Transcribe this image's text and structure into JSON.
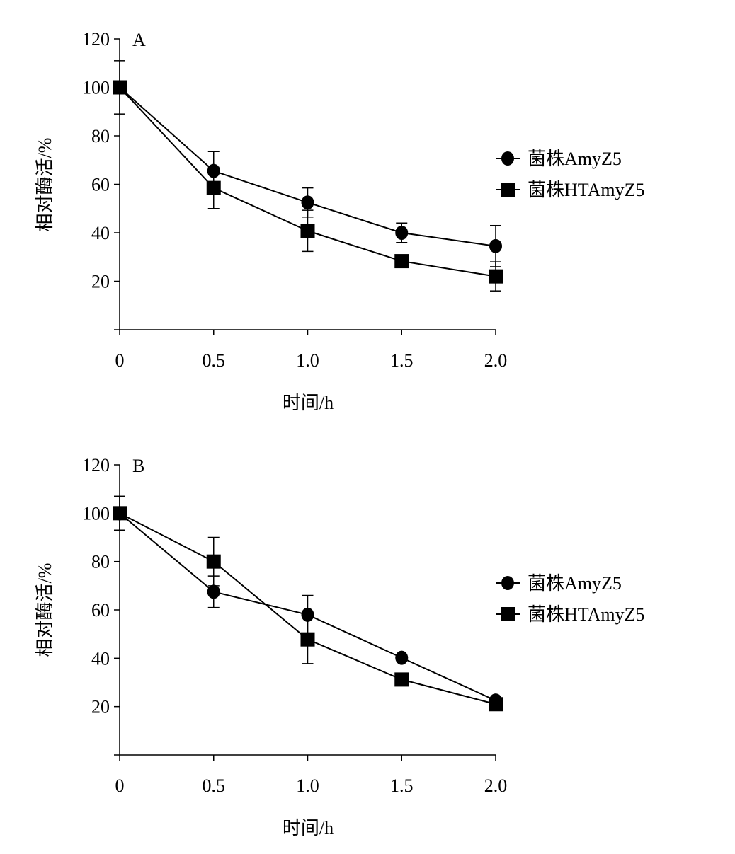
{
  "chart_data": [
    {
      "type": "line",
      "panel_label": "A",
      "xlabel": "时间/h",
      "ylabel": "相对酶活/%",
      "x": [
        0,
        0.5,
        1.0,
        1.5,
        2.0
      ],
      "x_tick_labels": [
        "0",
        "0.5",
        "1.0",
        "1.5",
        "2.0"
      ],
      "y_ticks": [
        20,
        40,
        60,
        80,
        100,
        120
      ],
      "xlim": [
        0,
        2.0
      ],
      "ylim": [
        0,
        120
      ],
      "grid": false,
      "legend_position": "right",
      "series": [
        {
          "name": "菌株AmyZ5",
          "marker": "circle",
          "values": [
            100,
            65.5,
            52.5,
            40,
            34.5
          ],
          "error": [
            11,
            8,
            6,
            4,
            8.5
          ]
        },
        {
          "name": "菌株HTAmyZ5",
          "marker": "square",
          "values": [
            100,
            58.5,
            40.8,
            28.3,
            22
          ],
          "error": [
            1,
            8.5,
            8.5,
            1,
            6
          ]
        }
      ]
    },
    {
      "type": "line",
      "panel_label": "B",
      "xlabel": "时间/h",
      "ylabel": "相对酶活/%",
      "x": [
        0,
        0.5,
        1.0,
        1.5,
        2.0
      ],
      "x_tick_labels": [
        "0",
        "0.5",
        "1.0",
        "1.5",
        "2.0"
      ],
      "y_ticks": [
        20,
        40,
        60,
        80,
        100,
        120
      ],
      "xlim": [
        0,
        2.0
      ],
      "ylim": [
        0,
        120
      ],
      "grid": false,
      "legend_position": "right",
      "series": [
        {
          "name": "菌株AmyZ5",
          "marker": "circle",
          "values": [
            100,
            67.5,
            58,
            40.2,
            22.5
          ],
          "error": [
            7,
            6.5,
            8,
            1,
            1
          ]
        },
        {
          "name": "菌株HTAmyZ5",
          "marker": "square",
          "values": [
            100,
            80,
            47.8,
            31.2,
            21
          ],
          "error": [
            7,
            10,
            10,
            1,
            1
          ]
        }
      ]
    }
  ]
}
